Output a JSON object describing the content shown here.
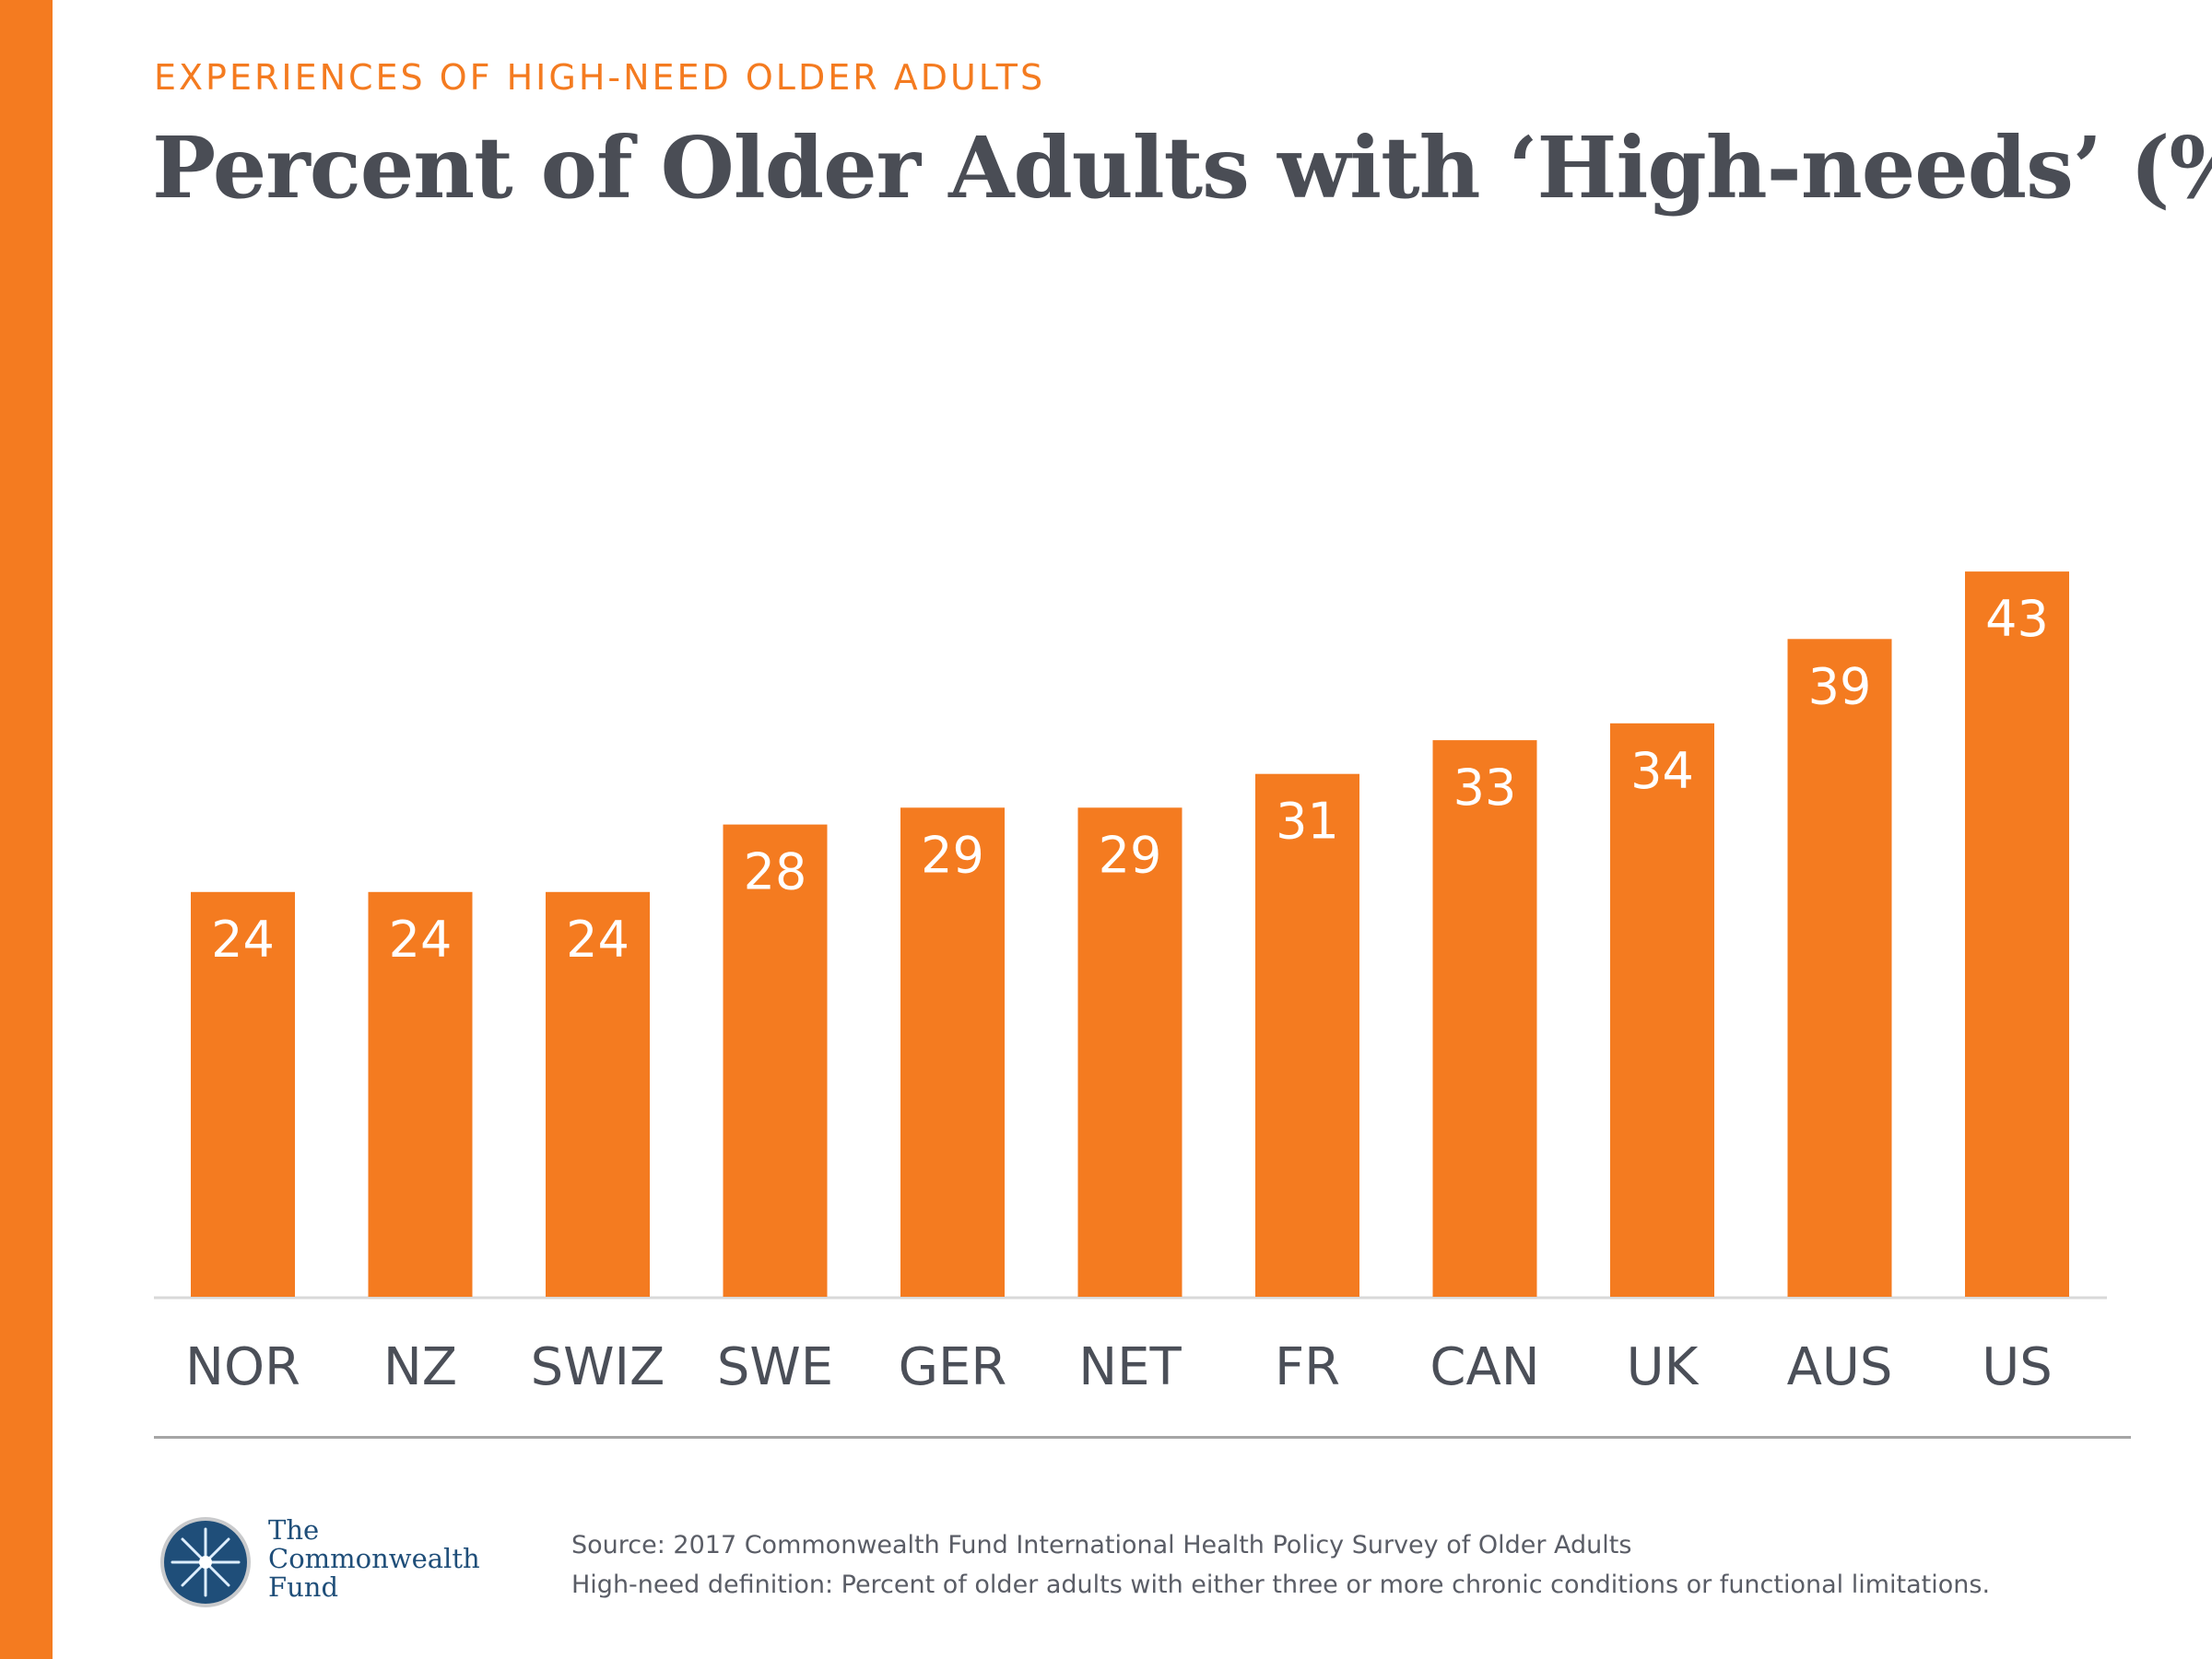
{
  "header": {
    "kicker": "EXPERIENCES OF HIGH-NEED OLDER ADULTS",
    "title": "Percent of Older Adults with ‘High-needs’ (%)"
  },
  "chart_data": {
    "type": "bar",
    "title": "Percent of Older Adults with ‘High-needs’ (%)",
    "categories": [
      "NOR",
      "NZ",
      "SWIZ",
      "SWE",
      "GER",
      "NET",
      "FR",
      "CAN",
      "UK",
      "AUS",
      "US"
    ],
    "values": [
      24,
      24,
      24,
      28,
      29,
      29,
      31,
      33,
      34,
      39,
      43
    ],
    "ylim": [
      0,
      43
    ],
    "grid": false,
    "bar_color": "#F47B20",
    "data_labels": true
  },
  "footer": {
    "logo_lines": [
      "The",
      "Commonwealth",
      "Fund"
    ],
    "source": "Source: 2017 Commonwealth Fund International Health Policy Survey of Older Adults",
    "definition": "High-need definition: Percent of older adults with either three or more chronic conditions or functional limitations."
  },
  "colors": {
    "accent": "#F47B20",
    "title": "#4A4D55",
    "logo": "#1F4E79"
  }
}
